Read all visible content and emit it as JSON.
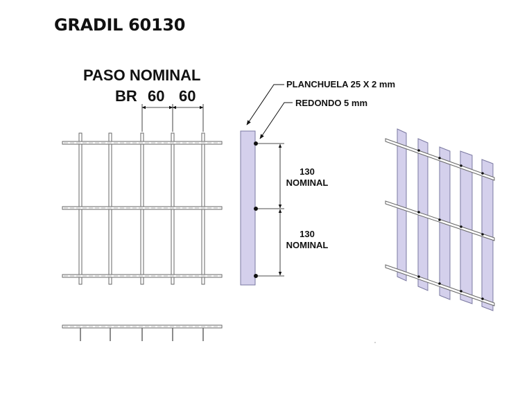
{
  "title": "GRADIL 60130",
  "pitch": {
    "heading": "PASO NOMINAL",
    "br_label": "BR",
    "spacing_1": "60",
    "spacing_2": "60"
  },
  "labels": {
    "flat_bar": "PLANCHUELA 25 X 2 mm",
    "round_bar": "REDONDO 5 mm"
  },
  "dimensions": [
    {
      "value": "130",
      "unit": "NOMINAL"
    },
    {
      "value": "130",
      "unit": "NOMINAL"
    }
  ],
  "colors": {
    "line": "#555555",
    "bar_fill": "#d4d0ec",
    "bar_stroke": "#7a78a0",
    "text": "#111111"
  }
}
